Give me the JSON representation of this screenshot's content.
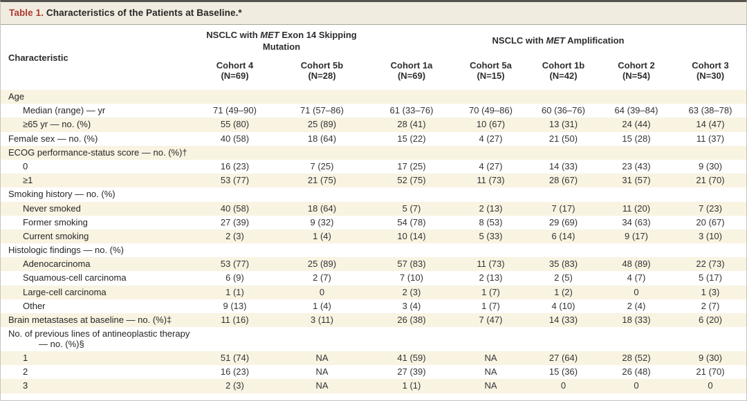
{
  "title": {
    "prefix": "Table 1.",
    "text": " Characteristics of the Patients at Baseline.*"
  },
  "header": {
    "characteristic_label": "Characteristic",
    "group1": {
      "pre": "NSCLC with ",
      "gene": "MET",
      "post": " Exon 14 Skipping Mutation"
    },
    "group2": {
      "pre": "NSCLC with ",
      "gene": "MET",
      "post": " Amplification"
    },
    "cohorts": [
      {
        "name": "Cohort 4",
        "n": "(N=69)"
      },
      {
        "name": "Cohort 5b",
        "n": "(N=28)"
      },
      {
        "name": "Cohort 1a",
        "n": "(N=69)"
      },
      {
        "name": "Cohort 5a",
        "n": "(N=15)"
      },
      {
        "name": "Cohort 1b",
        "n": "(N=42)"
      },
      {
        "name": "Cohort 2",
        "n": "(N=54)"
      },
      {
        "name": "Cohort 3",
        "n": "(N=30)"
      }
    ]
  },
  "table": {
    "rows": [
      {
        "label": "Age",
        "indent": 0,
        "values": [
          "",
          "",
          "",
          "",
          "",
          "",
          ""
        ]
      },
      {
        "label": "Median (range) — yr",
        "indent": 1,
        "values": [
          "71 (49–90)",
          "71 (57–86)",
          "61 (33–76)",
          "70 (49–86)",
          "60 (36–76)",
          "64 (39–84)",
          "63 (38–78)"
        ]
      },
      {
        "label": "≥65 yr — no. (%)",
        "indent": 1,
        "values": [
          "55 (80)",
          "25 (89)",
          "28 (41)",
          "10 (67)",
          "13 (31)",
          "24 (44)",
          "14 (47)"
        ]
      },
      {
        "label": "Female sex — no. (%)",
        "indent": 0,
        "values": [
          "40 (58)",
          "18 (64)",
          "15 (22)",
          "4 (27)",
          "21 (50)",
          "15 (28)",
          "11 (37)"
        ]
      },
      {
        "label": "ECOG performance-status score — no. (%)†",
        "indent": 0,
        "values": [
          "",
          "",
          "",
          "",
          "",
          "",
          ""
        ]
      },
      {
        "label": "0",
        "indent": 1,
        "values": [
          "16 (23)",
          "7 (25)",
          "17 (25)",
          "4 (27)",
          "14 (33)",
          "23 (43)",
          "9 (30)"
        ]
      },
      {
        "label": "≥1",
        "indent": 1,
        "values": [
          "53 (77)",
          "21 (75)",
          "52 (75)",
          "11 (73)",
          "28 (67)",
          "31 (57)",
          "21 (70)"
        ]
      },
      {
        "label": "Smoking history — no. (%)",
        "indent": 0,
        "values": [
          "",
          "",
          "",
          "",
          "",
          "",
          ""
        ]
      },
      {
        "label": "Never smoked",
        "indent": 1,
        "values": [
          "40 (58)",
          "18 (64)",
          "5 (7)",
          "2 (13)",
          "7 (17)",
          "11 (20)",
          "7 (23)"
        ]
      },
      {
        "label": "Former smoking",
        "indent": 1,
        "values": [
          "27 (39)",
          "9 (32)",
          "54 (78)",
          "8 (53)",
          "29 (69)",
          "34 (63)",
          "20 (67)"
        ]
      },
      {
        "label": "Current smoking",
        "indent": 1,
        "values": [
          "2 (3)",
          "1 (4)",
          "10 (14)",
          "5 (33)",
          "6 (14)",
          "9 (17)",
          "3 (10)"
        ]
      },
      {
        "label": "Histologic findings — no. (%)",
        "indent": 0,
        "values": [
          "",
          "",
          "",
          "",
          "",
          "",
          ""
        ]
      },
      {
        "label": "Adenocarcinoma",
        "indent": 1,
        "values": [
          "53 (77)",
          "25 (89)",
          "57 (83)",
          "11 (73)",
          "35 (83)",
          "48 (89)",
          "22 (73)"
        ]
      },
      {
        "label": "Squamous-cell carcinoma",
        "indent": 1,
        "values": [
          "6 (9)",
          "2 (7)",
          "7 (10)",
          "2 (13)",
          "2 (5)",
          "4 (7)",
          "5 (17)"
        ]
      },
      {
        "label": "Large-cell carcinoma",
        "indent": 1,
        "values": [
          "1 (1)",
          "0",
          "2 (3)",
          "1 (7)",
          "1 (2)",
          "0",
          "1 (3)"
        ]
      },
      {
        "label": "Other",
        "indent": 1,
        "values": [
          "9 (13)",
          "1 (4)",
          "3 (4)",
          "1 (7)",
          "4 (10)",
          "2 (4)",
          "2 (7)"
        ]
      },
      {
        "label": "Brain metastases at baseline — no. (%)‡",
        "indent": 0,
        "values": [
          "11 (16)",
          "3 (11)",
          "26 (38)",
          "7 (47)",
          "14 (33)",
          "18 (33)",
          "6 (20)"
        ]
      },
      {
        "label": "No. of previous lines of antineoplastic therapy",
        "label2": "— no. (%)§",
        "indent": 0,
        "values": [
          "",
          "",
          "",
          "",
          "",
          "",
          ""
        ]
      },
      {
        "label": "1",
        "indent": 1,
        "values": [
          "51 (74)",
          "NA",
          "41 (59)",
          "NA",
          "27 (64)",
          "28 (52)",
          "9 (30)"
        ]
      },
      {
        "label": "2",
        "indent": 1,
        "values": [
          "16 (23)",
          "NA",
          "27 (39)",
          "NA",
          "15 (36)",
          "26 (48)",
          "21 (70)"
        ]
      },
      {
        "label": "3",
        "indent": 1,
        "values": [
          "2 (3)",
          "NA",
          "1 (1)",
          "NA",
          "0",
          "0",
          "0"
        ]
      }
    ]
  },
  "colors": {
    "accent_red": "#ae372f",
    "stripe": "#f9f3e2",
    "titlebar_bg": "#f1ece0"
  }
}
